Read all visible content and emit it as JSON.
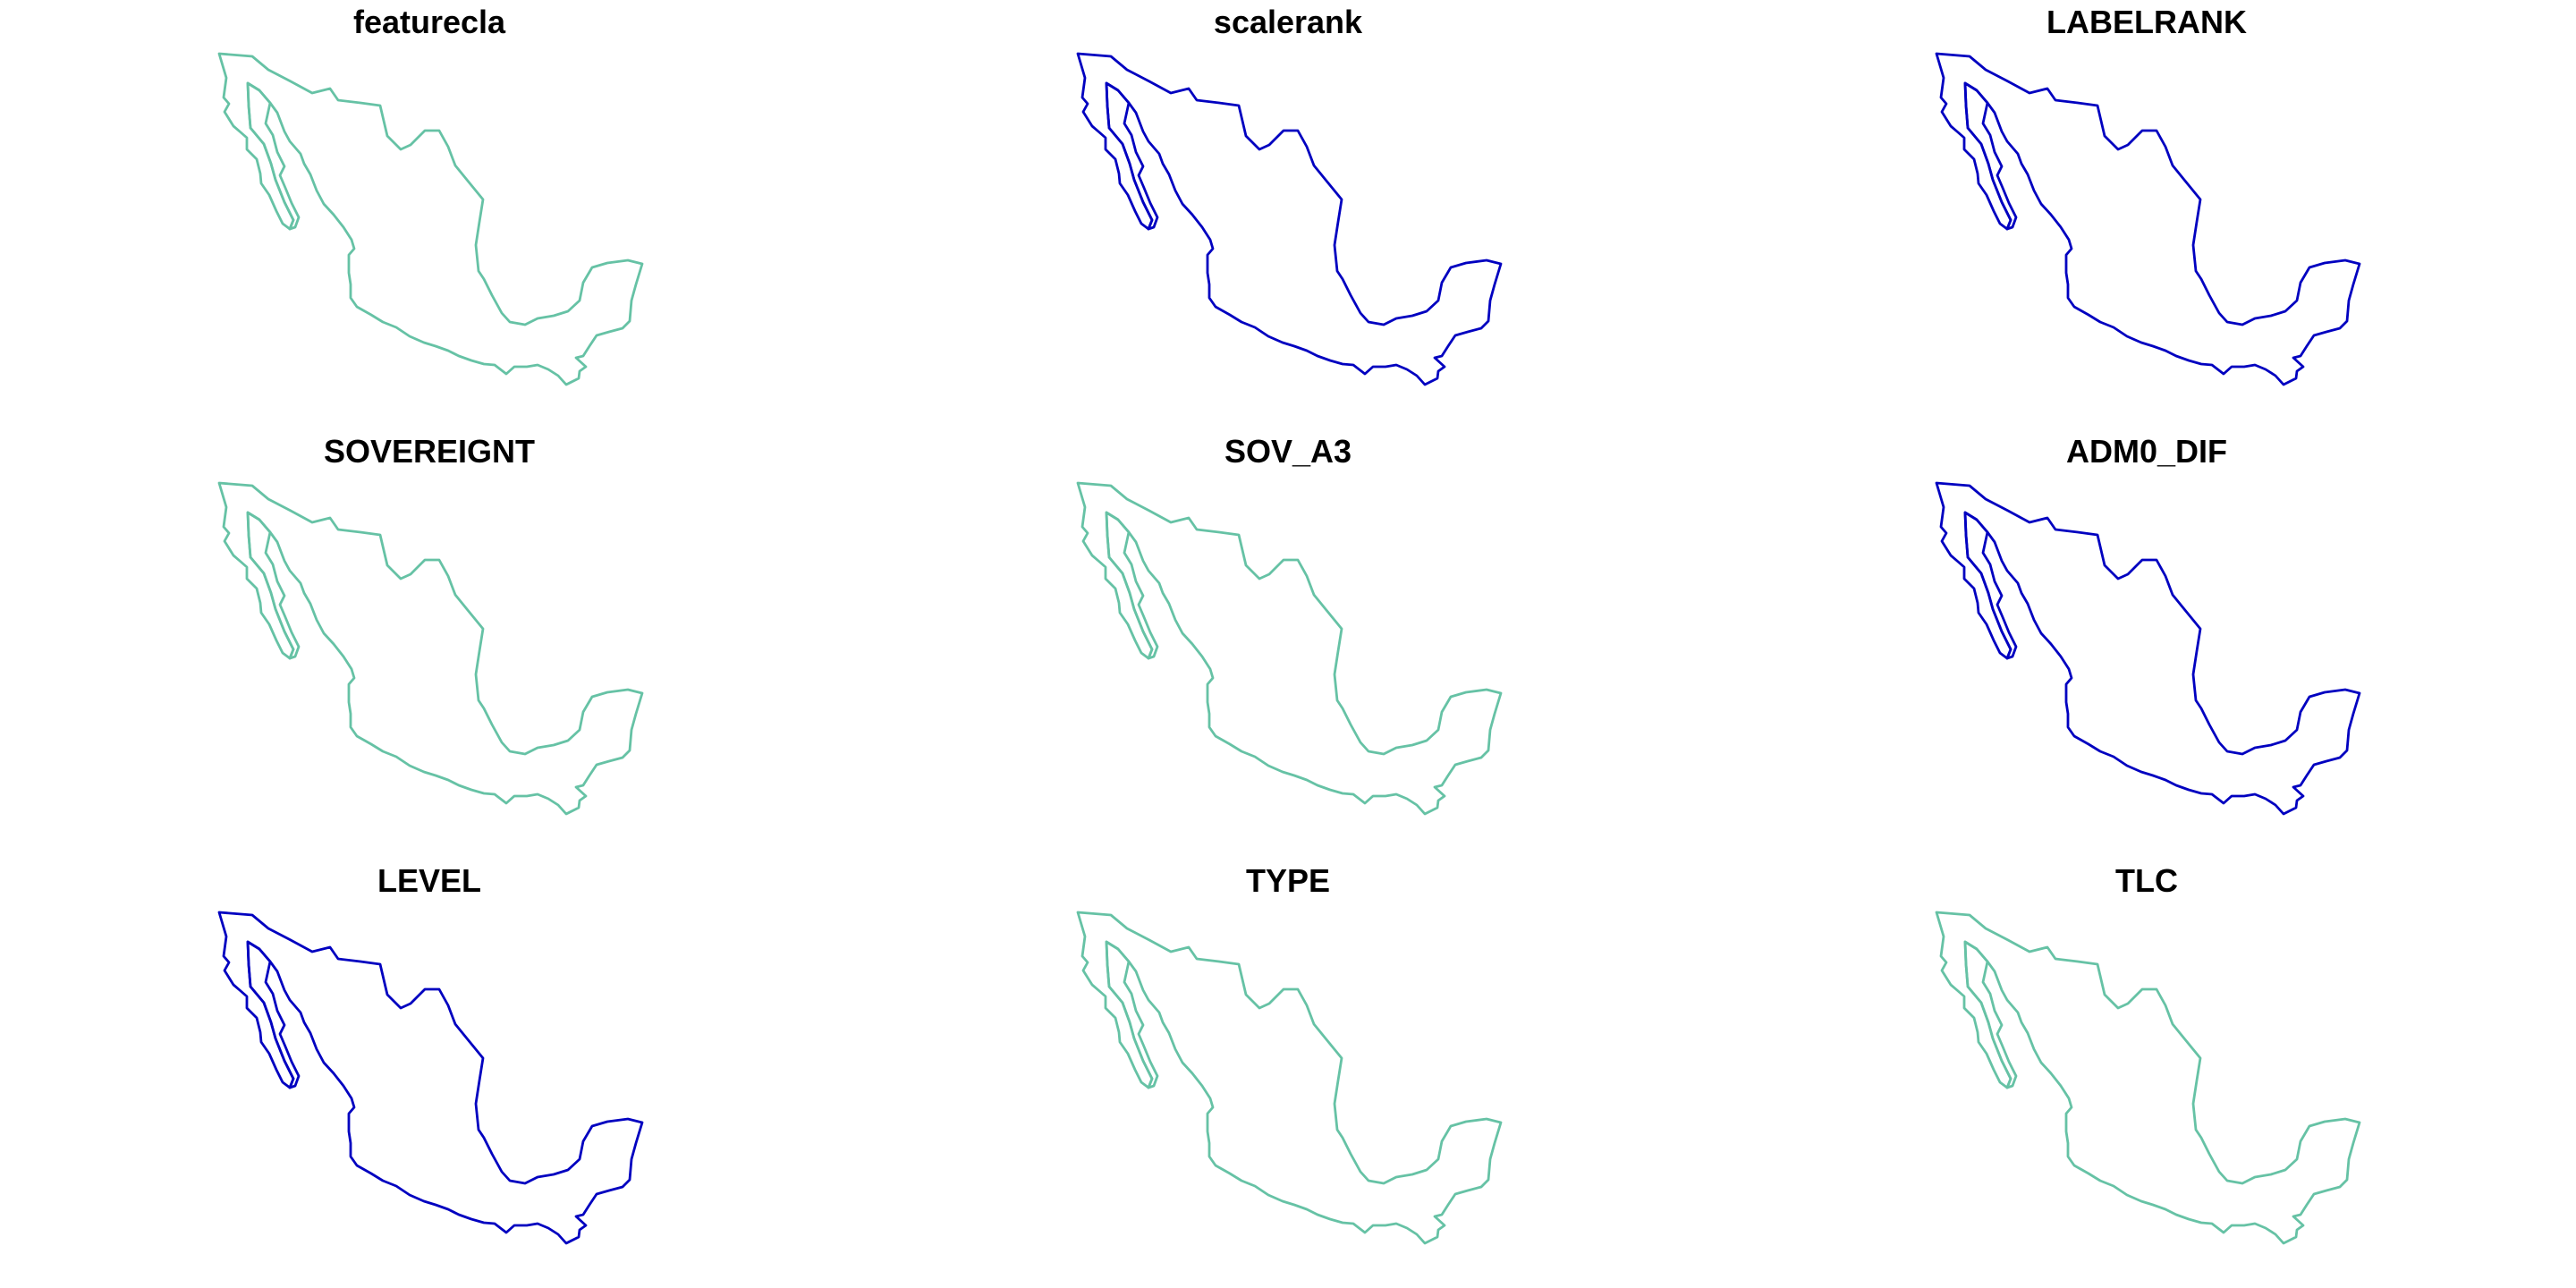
{
  "colors": {
    "teal": "#66c2a5",
    "blue": "#0000c0"
  },
  "panels": [
    {
      "title": "featurecla",
      "color": "#66c2a5"
    },
    {
      "title": "scalerank",
      "color": "#0000c0"
    },
    {
      "title": "LABELRANK",
      "color": "#0000c0"
    },
    {
      "title": "SOVEREIGNT",
      "color": "#66c2a5"
    },
    {
      "title": "SOV_A3",
      "color": "#66c2a5"
    },
    {
      "title": "ADM0_DIF",
      "color": "#0000c0"
    },
    {
      "title": "LEVEL",
      "color": "#0000c0"
    },
    {
      "title": "TYPE",
      "color": "#66c2a5"
    },
    {
      "title": "TLC",
      "color": "#66c2a5"
    }
  ]
}
